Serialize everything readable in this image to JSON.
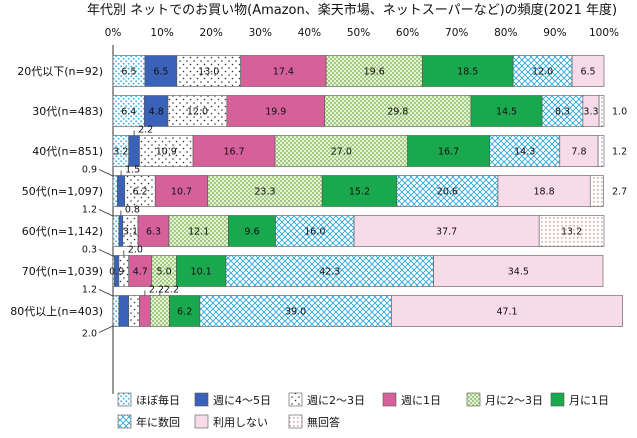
{
  "chart_data": {
    "type": "bar",
    "orientation": "horizontal",
    "stacked": true,
    "title": "年代別 ネットでのお買い物(Amazon、楽天市場、ネットスーパーなど)の頻度(2021 年度)",
    "xlim": [
      0,
      100
    ],
    "xticks": [
      "0%",
      "10%",
      "20%",
      "30%",
      "40%",
      "50%",
      "60%",
      "70%",
      "80%",
      "90%",
      "100%"
    ],
    "categories": [
      "20代以下(n=92)",
      "30代(n=483)",
      "40代(n=851)",
      "50代(n=1,097)",
      "60代(n=1,142)",
      "70代(n=1,039)",
      "80代以上(n=403)"
    ],
    "series": [
      {
        "name": "ほぼ毎日",
        "color": "#4fb6e6",
        "pattern": "dots-blue",
        "values": [
          6.5,
          6.4,
          3.2,
          0.9,
          1.2,
          0.3,
          1.2
        ]
      },
      {
        "name": "週に4～5日",
        "color": "#3a62b8",
        "pattern": "solid",
        "values": [
          6.5,
          4.8,
          2.2,
          1.5,
          0.8,
          0.9,
          2.0
        ]
      },
      {
        "name": "週に2～3日",
        "color": "#333333",
        "pattern": "sparse-dots",
        "values": [
          13.0,
          12.0,
          10.9,
          6.2,
          3.1,
          2.0,
          2.2
        ]
      },
      {
        "name": "週に1日",
        "color": "#d6609a",
        "pattern": "solid",
        "values": [
          17.4,
          19.9,
          16.7,
          10.7,
          6.3,
          4.7,
          2.2
        ]
      },
      {
        "name": "月に2～3日",
        "color": "#8cc06a",
        "pattern": "dots-green",
        "values": [
          19.6,
          29.8,
          27.0,
          23.3,
          12.1,
          5.0,
          3.9
        ]
      },
      {
        "name": "月に1日",
        "color": "#1aa84f",
        "pattern": "solid",
        "values": [
          18.5,
          14.5,
          16.7,
          15.2,
          9.6,
          10.1,
          6.2
        ]
      },
      {
        "name": "年に数回",
        "color": "#2ba6d8",
        "pattern": "crosshatch",
        "values": [
          12.0,
          8.3,
          14.3,
          20.6,
          16.0,
          42.3,
          39.0
        ]
      },
      {
        "name": "利用しない",
        "color": "#f8dbe8",
        "pattern": "solid-light",
        "values": [
          6.5,
          3.3,
          7.8,
          18.8,
          37.7,
          34.5,
          47.1
        ]
      },
      {
        "name": "無回答",
        "color": "#d07a80",
        "pattern": "grid-pink",
        "values": [
          0.0,
          1.0,
          1.2,
          2.7,
          13.2,
          0.0,
          0.0
        ]
      }
    ],
    "data_labels": [
      [
        {
          "t": "6.5",
          "s": 0
        },
        {
          "t": "6.5",
          "s": 1
        },
        {
          "t": "13.0",
          "s": 2
        },
        {
          "t": "17.4",
          "s": 3
        },
        {
          "t": "19.6",
          "s": 4
        },
        {
          "t": "18.5",
          "s": 5
        },
        {
          "t": "12.0",
          "s": 6
        },
        {
          "t": "6.5",
          "s": 7
        }
      ],
      [
        {
          "t": "6.4",
          "s": 0
        },
        {
          "t": "4.8",
          "s": 1
        },
        {
          "t": "12.0",
          "s": 2
        },
        {
          "t": "19.9",
          "s": 3
        },
        {
          "t": "29.8",
          "s": 4
        },
        {
          "t": "14.5",
          "s": 5
        },
        {
          "t": "8.3",
          "s": 6
        },
        {
          "t": "3.3",
          "s": 7
        },
        {
          "t": "1.0",
          "pos": "right"
        }
      ],
      [
        {
          "t": "3.2",
          "s": 0
        },
        {
          "t": "2.2",
          "pos": "above",
          "at": 1
        },
        {
          "t": "10.9",
          "s": 2
        },
        {
          "t": "16.7",
          "s": 3
        },
        {
          "t": "27.0",
          "s": 4
        },
        {
          "t": "16.7",
          "s": 5
        },
        {
          "t": "14.3",
          "s": 6
        },
        {
          "t": "7.8",
          "s": 7
        },
        {
          "t": "1.2",
          "pos": "right"
        }
      ],
      [
        {
          "t": "0.9",
          "pos": "above-left"
        },
        {
          "t": "1.5",
          "pos": "above",
          "at": 1
        },
        {
          "t": "6.2",
          "s": 2
        },
        {
          "t": "10.7",
          "s": 3
        },
        {
          "t": "23.3",
          "s": 4
        },
        {
          "t": "15.2",
          "s": 5
        },
        {
          "t": "20.6",
          "s": 6
        },
        {
          "t": "18.8",
          "s": 7
        },
        {
          "t": "2.7",
          "pos": "right"
        }
      ],
      [
        {
          "t": "1.2",
          "pos": "above-left"
        },
        {
          "t": "0.8",
          "pos": "above",
          "at": 1
        },
        {
          "t": "3.1",
          "s": 2
        },
        {
          "t": "6.3",
          "s": 3
        },
        {
          "t": "12.1",
          "s": 4
        },
        {
          "t": "9.6",
          "s": 5
        },
        {
          "t": "16.0",
          "s": 6
        },
        {
          "t": "37.7",
          "s": 7
        },
        {
          "t": "13.2",
          "s": 8
        }
      ],
      [
        {
          "t": "0.3",
          "pos": "above-left"
        },
        {
          "t": "0.9",
          "s": 1
        },
        {
          "t": "2.0",
          "pos": "above",
          "at": 2
        },
        {
          "t": "4.7",
          "s": 3
        },
        {
          "t": "5.0",
          "s": 4
        },
        {
          "t": "10.1",
          "s": 5
        },
        {
          "t": "42.3",
          "s": 6
        },
        {
          "t": "34.5",
          "s": 7
        }
      ],
      [
        {
          "t": "1.2",
          "pos": "above-left"
        },
        {
          "t": "2.0",
          "pos": "below-left"
        },
        {
          "t": "2.2",
          "pos": "above",
          "at": 3
        },
        {
          "t": "2.2",
          "pos": "above",
          "at": 4
        },
        {
          "t": "6.2",
          "s": 5
        },
        {
          "t": "39.0",
          "s": 6
        },
        {
          "t": "47.1",
          "s": 7
        }
      ]
    ],
    "legend": {
      "position": "bottom",
      "rows": [
        [
          "ほぼ毎日",
          "週に4～5日",
          "週に2～3日",
          "週に1日",
          "月に2～3日",
          "月に1日"
        ],
        [
          "年に数回",
          "利用しない",
          "無回答"
        ]
      ]
    }
  }
}
